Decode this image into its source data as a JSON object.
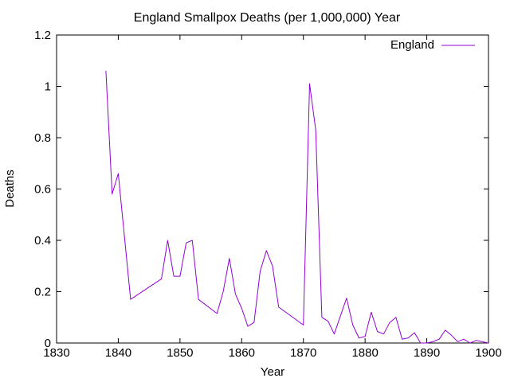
{
  "chart_data": {
    "type": "line",
    "title": "England Smallpox Deaths (per 1,000,000) Year",
    "xlabel": "Year",
    "ylabel": "Deaths",
    "xlim": [
      1830,
      1900
    ],
    "ylim": [
      0,
      1.2
    ],
    "xticks": [
      "1830",
      "1840",
      "1850",
      "1860",
      "1870",
      "1880",
      "1890",
      "1900"
    ],
    "yticks": [
      "0",
      "0.2",
      "0.4",
      "0.6",
      "0.8",
      "1",
      "1.2"
    ],
    "grid": false,
    "legend_position": "top-right",
    "series": [
      {
        "name": "England",
        "color": "#9400d3",
        "x": [
          1838,
          1839,
          1840,
          1842,
          1847,
          1848,
          1849,
          1850,
          1851,
          1852,
          1853,
          1856,
          1857,
          1858,
          1859,
          1860,
          1861,
          1862,
          1863,
          1864,
          1865,
          1866,
          1870,
          1871,
          1872,
          1873,
          1874,
          1875,
          1877,
          1878,
          1879,
          1880,
          1881,
          1882,
          1883,
          1884,
          1885,
          1886,
          1887,
          1888,
          1889,
          1890,
          1891,
          1892,
          1893,
          1894,
          1895,
          1896,
          1897,
          1898,
          1899,
          1900
        ],
        "values": [
          1.06,
          0.58,
          0.66,
          0.17,
          0.25,
          0.4,
          0.26,
          0.26,
          0.39,
          0.4,
          0.17,
          0.115,
          0.2,
          0.33,
          0.19,
          0.135,
          0.065,
          0.08,
          0.28,
          0.36,
          0.3,
          0.14,
          0.07,
          1.01,
          0.83,
          0.1,
          0.085,
          0.035,
          0.175,
          0.07,
          0.02,
          0.025,
          0.12,
          0.045,
          0.035,
          0.08,
          0.1,
          0.015,
          0.02,
          0.04,
          0.0,
          0.0,
          0.005,
          0.015,
          0.05,
          0.03,
          0.005,
          0.015,
          0.0,
          0.01,
          0.005,
          0.0
        ]
      }
    ]
  }
}
